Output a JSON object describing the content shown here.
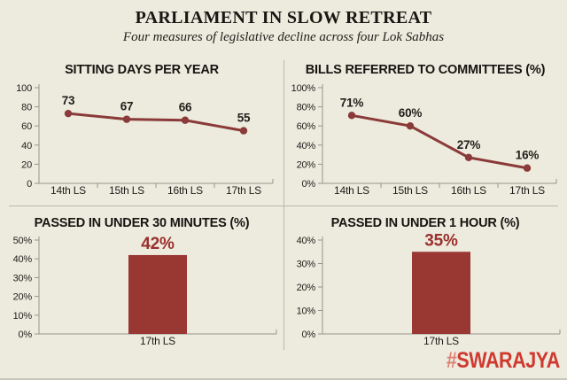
{
  "header": {
    "title": "PARLIAMENT IN SLOW RETREAT",
    "subtitle": "Four measures of legislative decline across four Lok Sabhas"
  },
  "footer": {
    "brand_hash": "#",
    "brand_name": "SWARAJYA"
  },
  "colors": {
    "background": "#edeade",
    "line": "#8a3a38",
    "bar": "#993733",
    "bar_label": "#9a302c",
    "axis": "#98958a",
    "text": "#201e1a",
    "divider": "#bab7ac",
    "brand_red": "#cf392f",
    "brand_hash_red": "#de7f73"
  },
  "chart_data": [
    {
      "type": "line",
      "title": "SITTING DAYS PER YEAR",
      "categories": [
        "14th LS",
        "15th LS",
        "16th LS",
        "17th LS"
      ],
      "values": [
        73,
        67,
        66,
        55
      ],
      "ylim": [
        0,
        100
      ],
      "yticks": [
        0,
        20,
        40,
        60,
        80,
        100
      ],
      "ytick_suffix": "",
      "label_suffix": "",
      "grid": false,
      "legend": false
    },
    {
      "type": "line",
      "title": "BILLS REFERRED TO COMMITTEES (%)",
      "categories": [
        "14th LS",
        "15th LS",
        "16th LS",
        "17th LS"
      ],
      "values": [
        71,
        60,
        27,
        16
      ],
      "ylim": [
        0,
        100
      ],
      "yticks": [
        0,
        20,
        40,
        60,
        80,
        100
      ],
      "ytick_suffix": "%",
      "label_suffix": "%",
      "grid": false,
      "legend": false
    },
    {
      "type": "bar",
      "title": "PASSED IN UNDER 30 MINUTES (%)",
      "categories": [
        "17th LS"
      ],
      "values": [
        42
      ],
      "ylim": [
        0,
        50
      ],
      "yticks": [
        0,
        10,
        20,
        30,
        40,
        50
      ],
      "ytick_suffix": "%",
      "label_suffix": "%",
      "grid": false,
      "legend": false
    },
    {
      "type": "bar",
      "title": "PASSED IN UNDER 1 HOUR (%)",
      "categories": [
        "17th LS"
      ],
      "values": [
        35
      ],
      "ylim": [
        0,
        40
      ],
      "yticks": [
        0,
        10,
        20,
        30,
        40
      ],
      "ytick_suffix": "%",
      "label_suffix": "%",
      "grid": false,
      "legend": false
    }
  ]
}
